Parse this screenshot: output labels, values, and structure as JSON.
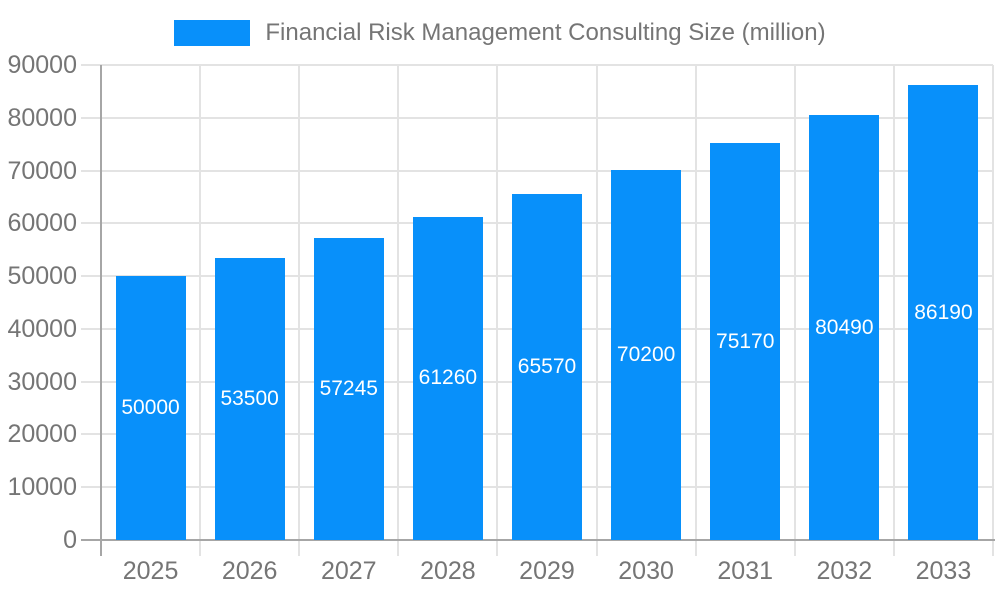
{
  "legend": {
    "label": "Financial Risk Management Consulting Size (million)"
  },
  "chart_data": {
    "type": "bar",
    "title": "Financial Risk Management Consulting Size (million)",
    "categories": [
      "2025",
      "2026",
      "2027",
      "2028",
      "2029",
      "2030",
      "2031",
      "2032",
      "2033"
    ],
    "values": [
      50000,
      53500,
      57245,
      61260,
      65570,
      70200,
      75170,
      80490,
      86190
    ],
    "xlabel": "",
    "ylabel": "",
    "ylim": [
      0,
      90000
    ],
    "y_tick_step": 10000,
    "y_tick_labels": [
      "0",
      "10000",
      "20000",
      "30000",
      "40000",
      "50000",
      "60000",
      "70000",
      "80000",
      "90000"
    ],
    "grid": true,
    "legend_position": "top",
    "colors": {
      "bar": "#0890fa",
      "bar_label": "#ffffff",
      "axis_line": "#a6a6a6",
      "gridline": "#e3e3e3",
      "tick_text": "#757575",
      "background": "#ffffff"
    }
  }
}
